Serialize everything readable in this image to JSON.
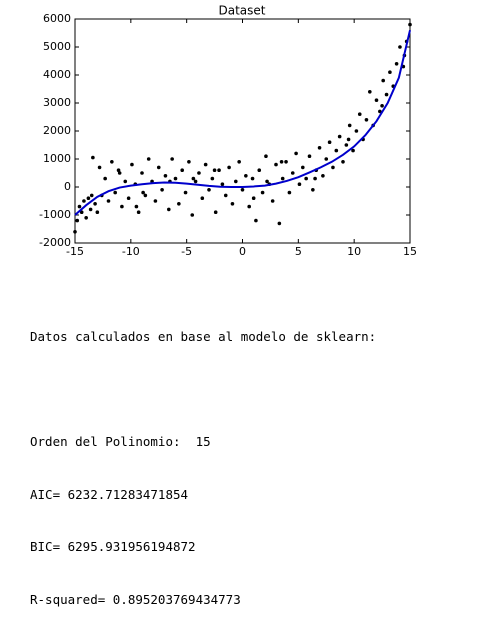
{
  "chart_data": {
    "type": "scatter",
    "title": "Dataset",
    "xlim": [
      -15,
      15
    ],
    "xticks": [
      -15,
      -10,
      -5,
      0,
      5,
      10,
      15
    ],
    "ylim": [
      -2000,
      6000
    ],
    "yticks": [
      -2000,
      -1000,
      0,
      1000,
      2000,
      3000,
      4000,
      5000,
      6000
    ],
    "series": [
      {
        "type": "scatter",
        "color": "#000000",
        "x": [
          -15,
          -14.8,
          -14.6,
          -14.4,
          -14.2,
          -14,
          -13.8,
          -13.6,
          -13.4,
          -13.2,
          -13,
          -12.6,
          -12.3,
          -12,
          -11.7,
          -11.4,
          -11.1,
          -10.8,
          -10.5,
          -10.2,
          -9.9,
          -9.6,
          -9.3,
          -9,
          -8.7,
          -8.4,
          -8.1,
          -7.8,
          -7.5,
          -7.2,
          -6.9,
          -6.6,
          -6.3,
          -6,
          -5.7,
          -5.4,
          -5.1,
          -4.8,
          -4.5,
          -4.2,
          -3.9,
          -3.6,
          -3.3,
          -3,
          -2.7,
          -2.4,
          -2.1,
          -1.8,
          -1.5,
          -1.2,
          -0.9,
          -0.6,
          -0.3,
          0,
          0.3,
          0.6,
          0.9,
          1.2,
          1.5,
          1.8,
          2.1,
          2.4,
          2.7,
          3,
          3.3,
          3.6,
          3.9,
          4.2,
          4.5,
          4.8,
          5.1,
          5.4,
          5.7,
          6,
          6.3,
          6.6,
          6.9,
          7.2,
          7.5,
          7.8,
          8.1,
          8.4,
          8.7,
          9,
          9.3,
          9.6,
          9.9,
          10.2,
          10.5,
          10.8,
          11.1,
          11.4,
          11.7,
          12,
          12.3,
          12.6,
          12.9,
          13.2,
          13.5,
          13.8,
          14.1,
          14.4,
          14.7,
          15,
          -13.5,
          -11,
          -9.5,
          -6.5,
          -2.5,
          1,
          3.5,
          6.5,
          9.5,
          12.5,
          14.5,
          -12.8,
          -8.9,
          -4.4,
          2.2
        ],
        "values": [
          -1600,
          -1200,
          -700,
          -900,
          -500,
          -1100,
          -400,
          -800,
          1050,
          -600,
          -900,
          -300,
          300,
          -500,
          900,
          -200,
          600,
          -700,
          200,
          -400,
          800,
          100,
          -900,
          500,
          -300,
          1000,
          200,
          -500,
          700,
          -100,
          400,
          -800,
          1000,
          300,
          -600,
          600,
          -200,
          900,
          -1000,
          200,
          500,
          -400,
          800,
          -100,
          300,
          -900,
          600,
          100,
          -300,
          700,
          -600,
          200,
          900,
          -100,
          400,
          -700,
          300,
          -1200,
          600,
          -200,
          1100,
          100,
          -500,
          800,
          -1300,
          300,
          900,
          -200,
          500,
          1200,
          100,
          700,
          300,
          1100,
          -100,
          600,
          1400,
          400,
          1000,
          1600,
          700,
          1300,
          1800,
          900,
          1500,
          2200,
          1300,
          2000,
          2600,
          1700,
          2400,
          3400,
          2200,
          3100,
          2700,
          3800,
          3300,
          4100,
          3600,
          4400,
          5000,
          4300,
          5200,
          5800,
          -300,
          500,
          -700,
          200,
          600,
          -400,
          900,
          300,
          1700,
          2900,
          4700,
          700,
          -200,
          300,
          200
        ]
      },
      {
        "type": "line",
        "color": "#0000cc",
        "x": [
          -15,
          -14,
          -13,
          -12,
          -11,
          -10,
          -9,
          -8,
          -7,
          -6,
          -5,
          -4,
          -3,
          -2,
          -1,
          0,
          1,
          2,
          3,
          4,
          5,
          6,
          7,
          8,
          9,
          10,
          11,
          12,
          13,
          14,
          15
        ],
        "values": [
          -1000,
          -650,
          -350,
          -150,
          -20,
          50,
          100,
          140,
          160,
          150,
          120,
          80,
          40,
          10,
          0,
          0,
          20,
          50,
          120,
          220,
          350,
          520,
          700,
          900,
          1150,
          1450,
          1850,
          2350,
          3000,
          3900,
          5600
        ]
      }
    ]
  },
  "output": {
    "lines": [
      "Datos calculados en base al modelo de sklearn:",
      "Orden del Polinomio:  15",
      "AIC= 6232.71283471854",
      "BIC= 6295.931956194872",
      "R-squared= 0.895203769434773"
    ]
  }
}
